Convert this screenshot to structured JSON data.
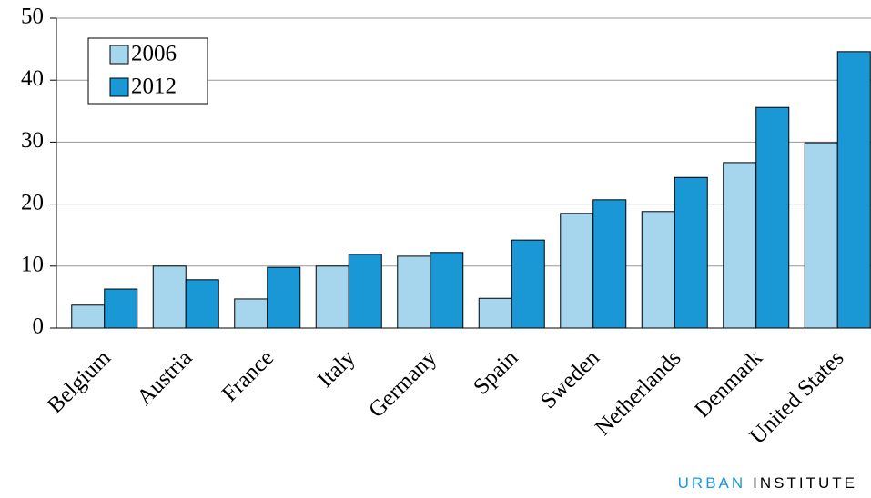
{
  "chart_data": {
    "type": "bar",
    "categories": [
      "Belgium",
      "Austria",
      "France",
      "Italy",
      "Germany",
      "Spain",
      "Sweden",
      "Netherlands",
      "Denmark",
      "United States"
    ],
    "series": [
      {
        "name": "2006",
        "color": "#a6d5ee",
        "values": [
          3.7,
          10.0,
          4.7,
          10.0,
          11.6,
          4.8,
          18.5,
          18.8,
          26.7,
          29.9
        ]
      },
      {
        "name": "2012",
        "color": "#1a97d5",
        "values": [
          6.3,
          7.8,
          9.8,
          11.9,
          12.2,
          14.2,
          20.7,
          24.3,
          35.6,
          44.6
        ]
      }
    ],
    "ylim": [
      0,
      50
    ],
    "yticks": [
      0,
      10,
      20,
      30,
      40,
      50
    ],
    "grid": true,
    "legend": "top-left"
  },
  "footer": {
    "brand": [
      "URBAN",
      "INSTITUTE"
    ]
  }
}
